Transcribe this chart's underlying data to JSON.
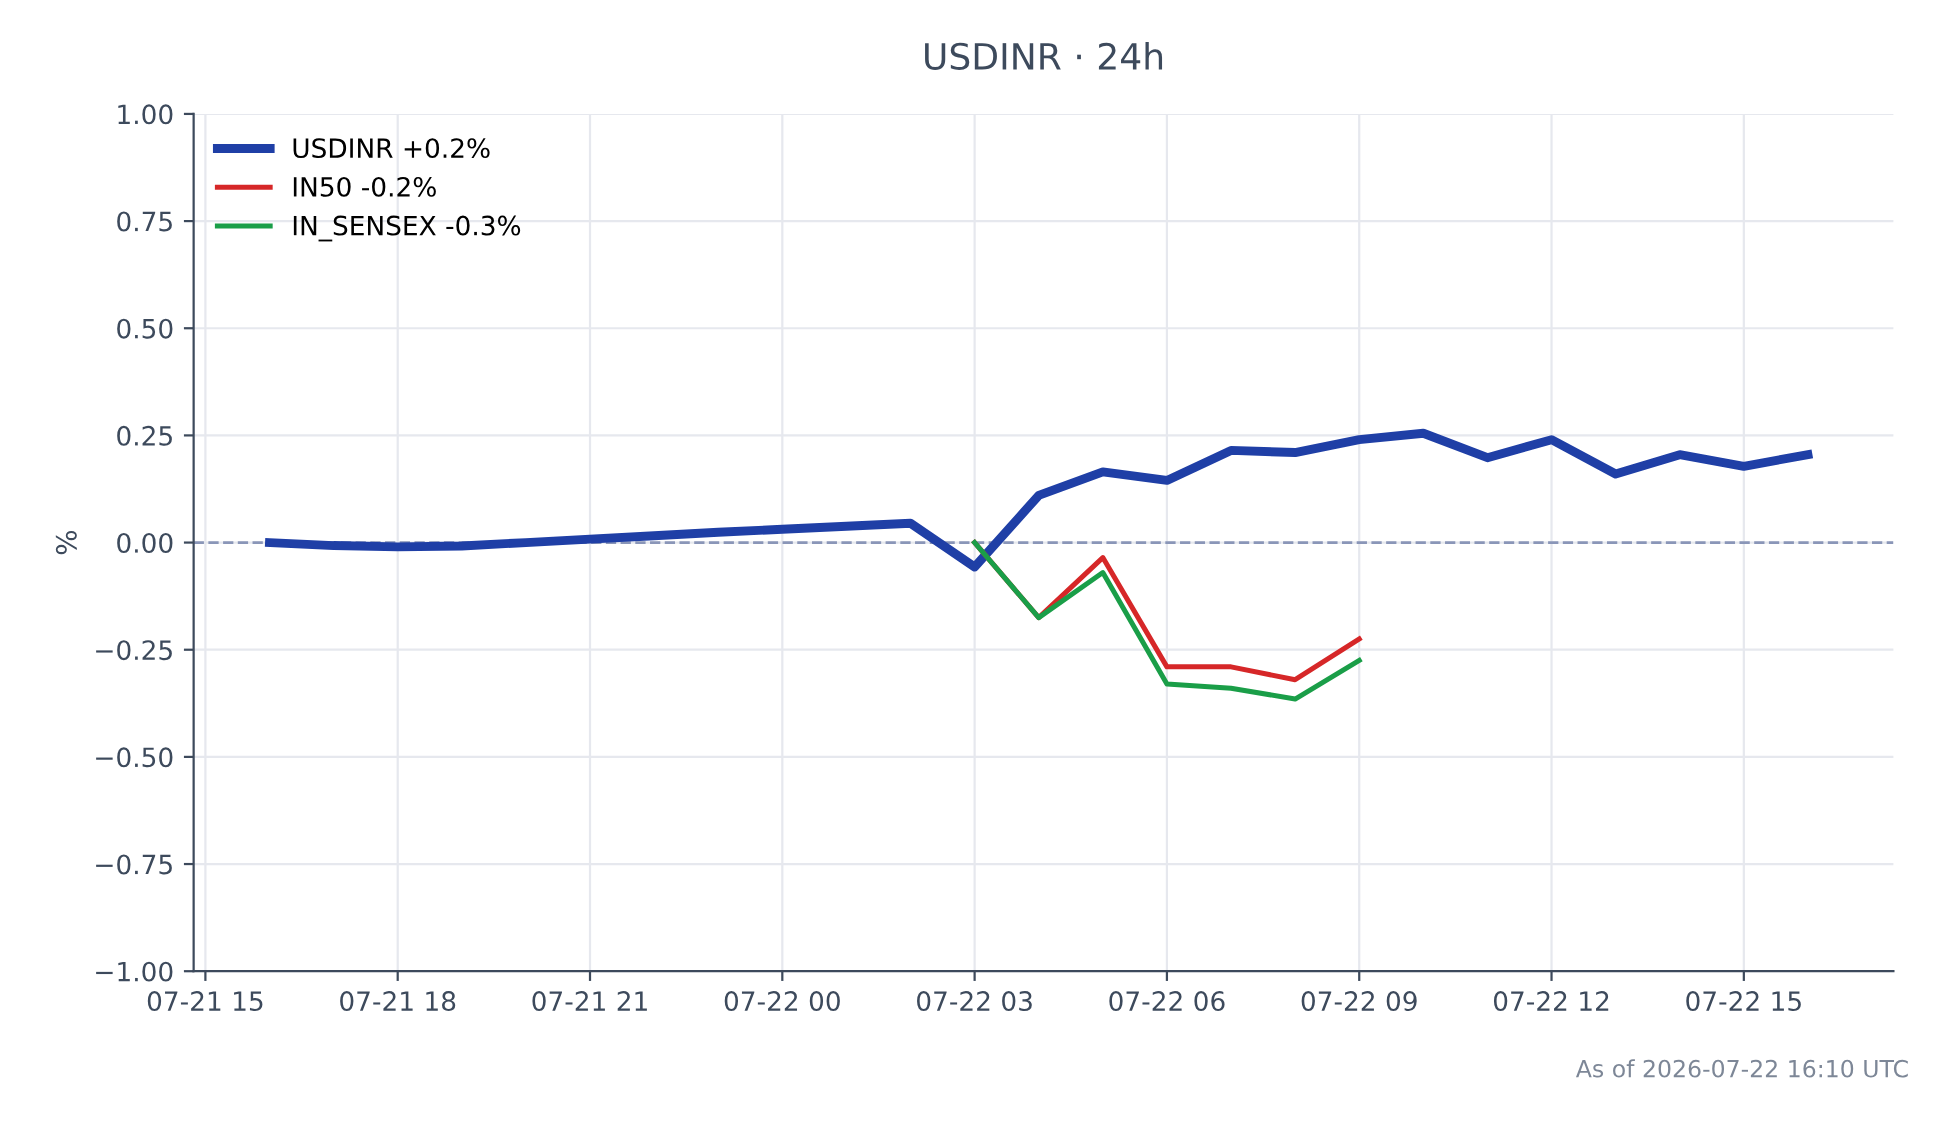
{
  "chart_data": {
    "type": "line",
    "title": "USDINR · 24h",
    "ylabel": "%",
    "annotations": [
      "As of 2026-07-22 16:10 UTC"
    ],
    "series": [
      {
        "name": "USDINR +0.2%",
        "color": "#1f3fa6",
        "x": [
          "2026-07-21T16:00",
          "2026-07-21T17:00",
          "2026-07-21T18:00",
          "2026-07-21T19:00",
          "2026-07-21T20:00",
          "2026-07-21T21:00",
          "2026-07-21T22:00",
          "2026-07-21T23:00",
          "2026-07-22T00:00",
          "2026-07-22T01:00",
          "2026-07-22T02:00",
          "2026-07-22T03:00",
          "2026-07-22T04:00",
          "2026-07-22T05:00",
          "2026-07-22T06:00",
          "2026-07-22T07:00",
          "2026-07-22T08:00",
          "2026-07-22T09:00",
          "2026-07-22T10:00",
          "2026-07-22T11:00",
          "2026-07-22T12:00",
          "2026-07-22T13:00",
          "2026-07-22T14:00",
          "2026-07-22T15:00",
          "2026-07-22T16:00"
        ],
        "values": [
          0.0,
          -0.007,
          -0.01,
          -0.008,
          0.0,
          0.008,
          0.016,
          0.024,
          0.031,
          0.038,
          0.045,
          -0.057,
          0.11,
          0.165,
          0.145,
          0.215,
          0.21,
          0.24,
          0.255,
          0.198,
          0.24,
          0.16,
          0.205,
          0.178,
          0.205
        ]
      },
      {
        "name": "IN50 -0.2%",
        "color": "#d62728",
        "x": [
          "2026-07-22T03:00",
          "2026-07-22T04:00",
          "2026-07-22T05:00",
          "2026-07-22T06:00",
          "2026-07-22T07:00",
          "2026-07-22T08:00",
          "2026-07-22T09:00"
        ],
        "values": [
          0.0,
          -0.175,
          -0.035,
          -0.29,
          -0.29,
          -0.32,
          -0.225
        ]
      },
      {
        "name": "IN_SENSEX -0.3%",
        "color": "#1a9e48",
        "x": [
          "2026-07-22T03:00",
          "2026-07-22T04:00",
          "2026-07-22T05:00",
          "2026-07-22T06:00",
          "2026-07-22T07:00",
          "2026-07-22T08:00",
          "2026-07-22T09:00"
        ],
        "values": [
          0.0,
          -0.175,
          -0.07,
          -0.33,
          -0.34,
          -0.365,
          -0.275
        ]
      }
    ],
    "xlim": [
      "2026-07-21T14:49",
      "2026-07-22T17:20"
    ],
    "xticks": [
      {
        "value": "2026-07-21T15:00",
        "label": "07-21 15"
      },
      {
        "value": "2026-07-21T18:00",
        "label": "07-21 18"
      },
      {
        "value": "2026-07-21T21:00",
        "label": "07-21 21"
      },
      {
        "value": "2026-07-22T00:00",
        "label": "07-22 00"
      },
      {
        "value": "2026-07-22T03:00",
        "label": "07-22 03"
      },
      {
        "value": "2026-07-22T06:00",
        "label": "07-22 06"
      },
      {
        "value": "2026-07-22T09:00",
        "label": "07-22 09"
      },
      {
        "value": "2026-07-22T12:00",
        "label": "07-22 12"
      },
      {
        "value": "2026-07-22T15:00",
        "label": "07-22 15"
      }
    ],
    "ylim": [
      -1.0,
      1.0
    ],
    "yticks": [
      {
        "value": -1.0,
        "label": "−1.00"
      },
      {
        "value": -0.75,
        "label": "−0.75"
      },
      {
        "value": -0.5,
        "label": "−0.50"
      },
      {
        "value": -0.25,
        "label": "−0.25"
      },
      {
        "value": 0.0,
        "label": "0.00"
      },
      {
        "value": 0.25,
        "label": "0.25"
      },
      {
        "value": 0.5,
        "label": "0.50"
      },
      {
        "value": 0.75,
        "label": "0.75"
      },
      {
        "value": 1.0,
        "label": "1.00"
      }
    ],
    "ref_lines": [
      {
        "axis": "y",
        "value": 0,
        "label": null,
        "color": "#8a96b8",
        "line_style": "dashed"
      }
    ],
    "grid": true,
    "legend": "top left",
    "marker": "none",
    "line_style": "solid"
  }
}
